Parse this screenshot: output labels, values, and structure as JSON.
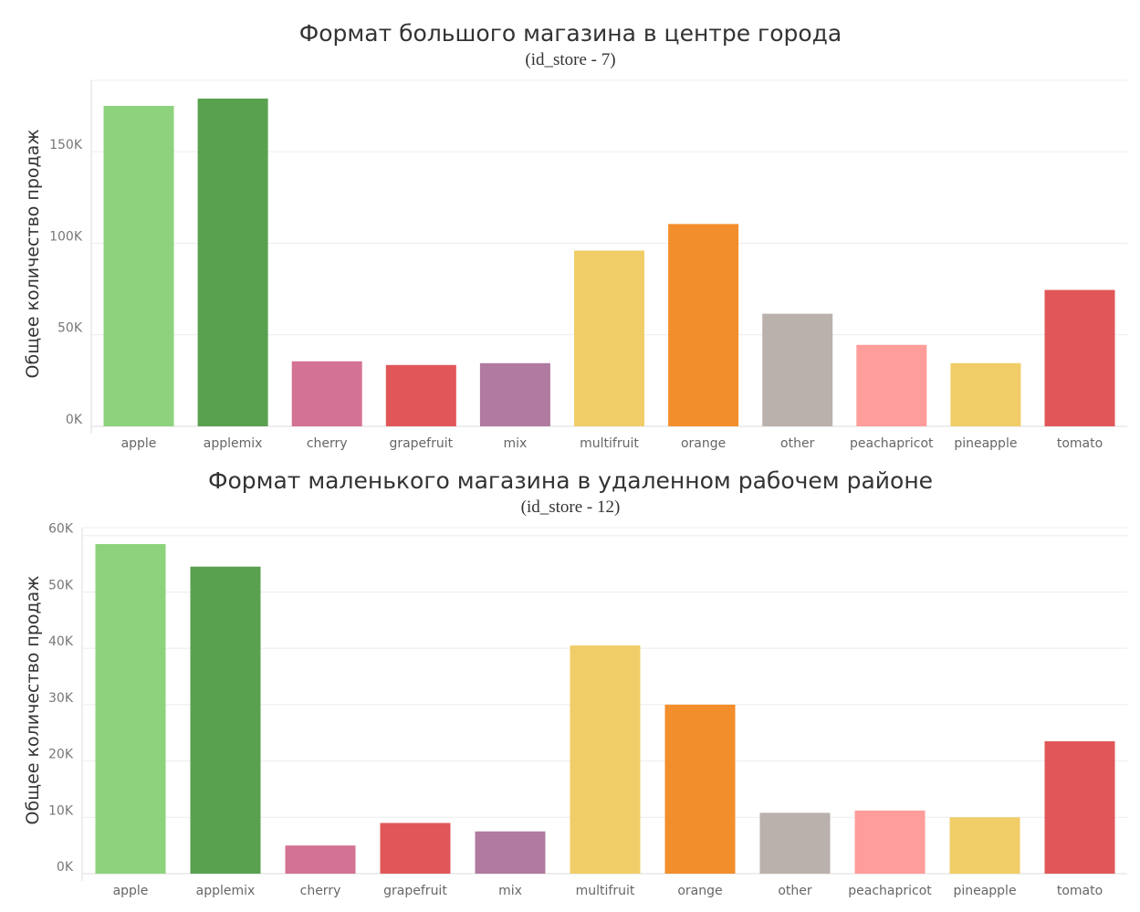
{
  "chart_data": [
    {
      "type": "bar",
      "title": "Формат большого магазина в центре города",
      "subtitle": "(id_store - 7)",
      "xlabel": "",
      "ylabel": "Общее количество продаж",
      "ylim": [
        0,
        180000
      ],
      "yticks": [
        0,
        50000,
        100000,
        150000
      ],
      "ytick_labels": [
        "0K",
        "50K",
        "100K",
        "150K"
      ],
      "grid": true,
      "categories": [
        "apple",
        "applemix",
        "cherry",
        "grapefruit",
        "mix",
        "multifruit",
        "orange",
        "other",
        "peachapricot",
        "pineapple",
        "tomato"
      ],
      "values": [
        175000,
        179000,
        35500,
        33500,
        34500,
        96000,
        110500,
        61500,
        44500,
        34500,
        74500
      ],
      "colors": [
        "#8dd27c",
        "#59a14f",
        "#d37295",
        "#e15759",
        "#b07aa1",
        "#f0cd67",
        "#f28e2b",
        "#bab0ac",
        "#ff9d9a",
        "#f0cd67",
        "#e15759"
      ]
    },
    {
      "type": "bar",
      "title": "Формат маленького магазина в удаленном рабочем районе",
      "subtitle": "(id_store - 12)",
      "xlabel": "",
      "ylabel": "Общее количество продаж",
      "ylim": [
        0,
        58500
      ],
      "yticks": [
        0,
        10000,
        20000,
        30000,
        40000,
        50000,
        60000
      ],
      "ytick_labels": [
        "0K",
        "10K",
        "20K",
        "30K",
        "40K",
        "50K",
        "60K"
      ],
      "grid": true,
      "categories": [
        "apple",
        "applemix",
        "cherry",
        "grapefruit",
        "mix",
        "multifruit",
        "orange",
        "other",
        "peachapricot",
        "pineapple",
        "tomato"
      ],
      "values": [
        58500,
        54500,
        5000,
        9000,
        7500,
        40500,
        30000,
        10800,
        11200,
        10000,
        23500
      ],
      "colors": [
        "#8dd27c",
        "#59a14f",
        "#d37295",
        "#e15759",
        "#b07aa1",
        "#f0cd67",
        "#f28e2b",
        "#bab0ac",
        "#ff9d9a",
        "#f0cd67",
        "#e15759"
      ]
    }
  ]
}
